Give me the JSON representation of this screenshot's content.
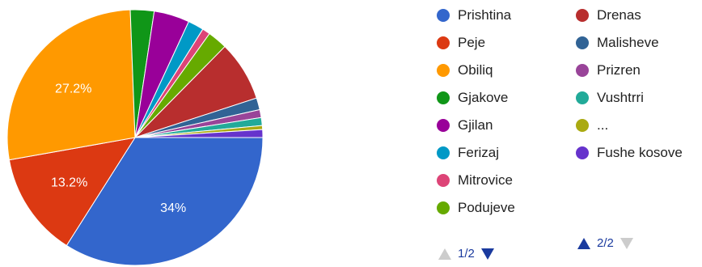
{
  "chart_data": {
    "type": "pie",
    "slices": [
      {
        "label": "Prishtina",
        "value": 34.0,
        "display": "34%",
        "color": "#3366cc"
      },
      {
        "label": "Peje",
        "value": 13.2,
        "display": "13.2%",
        "color": "#dc3912"
      },
      {
        "label": "Obiliq",
        "value": 27.2,
        "display": "27.2%",
        "color": "#ff9900"
      },
      {
        "label": "Gjakove",
        "value": 3.0,
        "display": "",
        "color": "#109618"
      },
      {
        "label": "Gjilan",
        "value": 4.5,
        "display": "",
        "color": "#990099"
      },
      {
        "label": "Ferizaj",
        "value": 2.0,
        "display": "",
        "color": "#0099c6"
      },
      {
        "label": "Mitrovice",
        "value": 1.0,
        "display": "",
        "color": "#dd4477"
      },
      {
        "label": "Podujeve",
        "value": 2.5,
        "display": "",
        "color": "#66aa00"
      },
      {
        "label": "Drenas",
        "value": 7.6,
        "display": "",
        "color": "#b82e2e"
      },
      {
        "label": "Malisheve",
        "value": 1.5,
        "display": "",
        "color": "#316395"
      },
      {
        "label": "Prizren",
        "value": 1.0,
        "display": "",
        "color": "#994499"
      },
      {
        "label": "Vushtrri",
        "value": 1.0,
        "display": "",
        "color": "#22aa99"
      },
      {
        "label": "...",
        "value": 0.5,
        "display": "",
        "color": "#aaaa11"
      },
      {
        "label": "Fushe kosove",
        "value": 1.0,
        "display": "",
        "color": "#6633cc"
      }
    ],
    "legend": {
      "pages": [
        [
          "Prishtina",
          "Peje",
          "Obiliq",
          "Gjakove",
          "Gjilan",
          "Ferizaj",
          "Mitrovice",
          "Podujeve"
        ],
        [
          "Drenas",
          "Malisheve",
          "Prizren",
          "Vushtrri",
          "...",
          "Fushe kosove"
        ]
      ]
    }
  },
  "pager": {
    "left_text": "1/2",
    "right_text": "2/2",
    "active_color": "#1a3a9e",
    "inactive_color": "#cccccc"
  }
}
